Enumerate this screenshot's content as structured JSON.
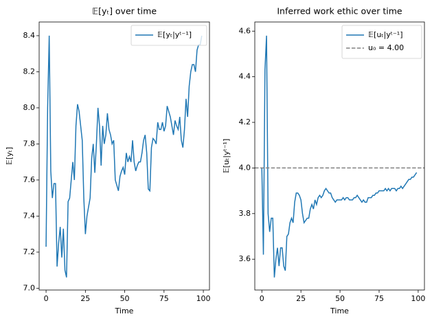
{
  "chart_data": [
    {
      "type": "line",
      "title": "𝔼[yₜ] over time",
      "xlabel": "Time",
      "ylabel": "𝔼[yₜ]",
      "x": [
        0,
        1,
        2,
        3,
        4,
        5,
        6,
        7,
        8,
        9,
        10,
        11,
        12,
        13,
        14,
        15,
        16,
        17,
        18,
        19,
        20,
        21,
        22,
        23,
        24,
        25,
        26,
        27,
        28,
        29,
        30,
        31,
        32,
        33,
        34,
        35,
        36,
        37,
        38,
        39,
        40,
        41,
        42,
        43,
        44,
        45,
        46,
        47,
        48,
        49,
        50,
        51,
        52,
        53,
        54,
        55,
        56,
        57,
        58,
        59,
        60,
        61,
        62,
        63,
        64,
        65,
        66,
        67,
        68,
        69,
        70,
        71,
        72,
        73,
        74,
        75,
        76,
        77,
        78,
        79,
        80,
        81,
        82,
        83,
        84,
        85,
        86,
        87,
        88,
        89,
        90,
        91,
        92,
        93,
        94,
        95,
        96,
        97,
        98,
        99
      ],
      "series": [
        {
          "name": "𝔼[yₜ|yᵗ⁻¹]",
          "color": "#1f77b4",
          "values": [
            7.23,
            8.0,
            8.4,
            7.65,
            7.5,
            7.58,
            7.58,
            7.12,
            7.25,
            7.34,
            7.17,
            7.33,
            7.1,
            7.06,
            7.48,
            7.5,
            7.6,
            7.7,
            7.6,
            7.9,
            8.02,
            7.98,
            7.9,
            7.82,
            7.5,
            7.3,
            7.4,
            7.45,
            7.5,
            7.72,
            7.8,
            7.64,
            7.8,
            8.0,
            7.9,
            7.68,
            7.9,
            7.8,
            7.85,
            7.97,
            7.88,
            7.85,
            7.8,
            7.82,
            7.6,
            7.57,
            7.54,
            7.62,
            7.65,
            7.67,
            7.63,
            7.75,
            7.7,
            7.73,
            7.7,
            7.82,
            7.7,
            7.65,
            7.68,
            7.7,
            7.7,
            7.75,
            7.82,
            7.85,
            7.75,
            7.55,
            7.54,
            7.78,
            7.83,
            7.82,
            7.8,
            7.92,
            7.88,
            7.88,
            7.92,
            7.87,
            7.9,
            8.01,
            7.98,
            7.95,
            7.9,
            7.85,
            7.93,
            7.9,
            7.88,
            7.95,
            7.82,
            7.78,
            7.88,
            8.05,
            7.95,
            8.12,
            8.2,
            8.24,
            8.24,
            8.2,
            8.32,
            8.35,
            8.35,
            8.4
          ]
        }
      ],
      "xlim": [
        -4.4,
        103.9
      ],
      "xticks": [
        0,
        25,
        50,
        75,
        100
      ],
      "ylim": [
        6.99,
        8.476
      ],
      "yticks": [
        {
          "value": 7,
          "label": "7.0"
        },
        7.2,
        7.4,
        7.6,
        7.8,
        {
          "value": 8,
          "label": "8.0"
        },
        8.2,
        8.4
      ],
      "legend": "upper right"
    },
    {
      "type": "line",
      "title": "Inferred work ethic over time",
      "xlabel": "Time",
      "ylabel": "𝔼[uₜ|yᵗ⁻¹]",
      "x": [
        0,
        1,
        2,
        3,
        4,
        5,
        6,
        7,
        8,
        9,
        10,
        11,
        12,
        13,
        14,
        15,
        16,
        17,
        18,
        19,
        20,
        21,
        22,
        23,
        24,
        25,
        26,
        27,
        28,
        29,
        30,
        31,
        32,
        33,
        34,
        35,
        36,
        37,
        38,
        39,
        40,
        41,
        42,
        43,
        44,
        45,
        46,
        47,
        48,
        49,
        50,
        51,
        52,
        53,
        54,
        55,
        56,
        57,
        58,
        59,
        60,
        61,
        62,
        63,
        64,
        65,
        66,
        67,
        68,
        69,
        70,
        71,
        72,
        73,
        74,
        75,
        76,
        77,
        78,
        79,
        80,
        81,
        82,
        83,
        84,
        85,
        86,
        87,
        88,
        89,
        90,
        91,
        92,
        93,
        94,
        95,
        96,
        97,
        98,
        99
      ],
      "series": [
        {
          "name": "𝔼[uₜ|yᵗ⁻¹]",
          "color": "#1f77b4",
          "values": [
            4.0,
            3.62,
            4.43,
            4.58,
            3.8,
            3.72,
            3.78,
            3.78,
            3.52,
            3.6,
            3.65,
            3.57,
            3.65,
            3.65,
            3.57,
            3.55,
            3.7,
            3.71,
            3.76,
            3.78,
            3.76,
            3.85,
            3.89,
            3.89,
            3.88,
            3.86,
            3.8,
            3.76,
            3.77,
            3.78,
            3.78,
            3.82,
            3.84,
            3.82,
            3.86,
            3.84,
            3.87,
            3.88,
            3.87,
            3.88,
            3.9,
            3.91,
            3.9,
            3.89,
            3.89,
            3.87,
            3.86,
            3.85,
            3.86,
            3.86,
            3.86,
            3.86,
            3.87,
            3.86,
            3.87,
            3.87,
            3.86,
            3.86,
            3.86,
            3.87,
            3.87,
            3.88,
            3.87,
            3.86,
            3.85,
            3.86,
            3.85,
            3.85,
            3.87,
            3.87,
            3.87,
            3.88,
            3.88,
            3.89,
            3.89,
            3.9,
            3.9,
            3.9,
            3.9,
            3.91,
            3.9,
            3.91,
            3.9,
            3.91,
            3.91,
            3.91,
            3.9,
            3.91,
            3.91,
            3.92,
            3.91,
            3.92,
            3.93,
            3.94,
            3.95,
            3.95,
            3.96,
            3.96,
            3.97,
            3.98
          ]
        }
      ],
      "reference_line": {
        "value": 4,
        "label": "u₀ = 4.00",
        "color": "#808080",
        "style": "dashed"
      },
      "xlim": [
        -4.5,
        104
      ],
      "xticks": [
        0,
        25,
        50,
        75,
        100
      ],
      "ylim": [
        3.465,
        4.64
      ],
      "yticks": [
        3.6,
        3.8,
        {
          "value": 4,
          "label": "4.0"
        },
        4.2,
        4.4,
        4.6
      ],
      "legend": "upper right"
    }
  ]
}
